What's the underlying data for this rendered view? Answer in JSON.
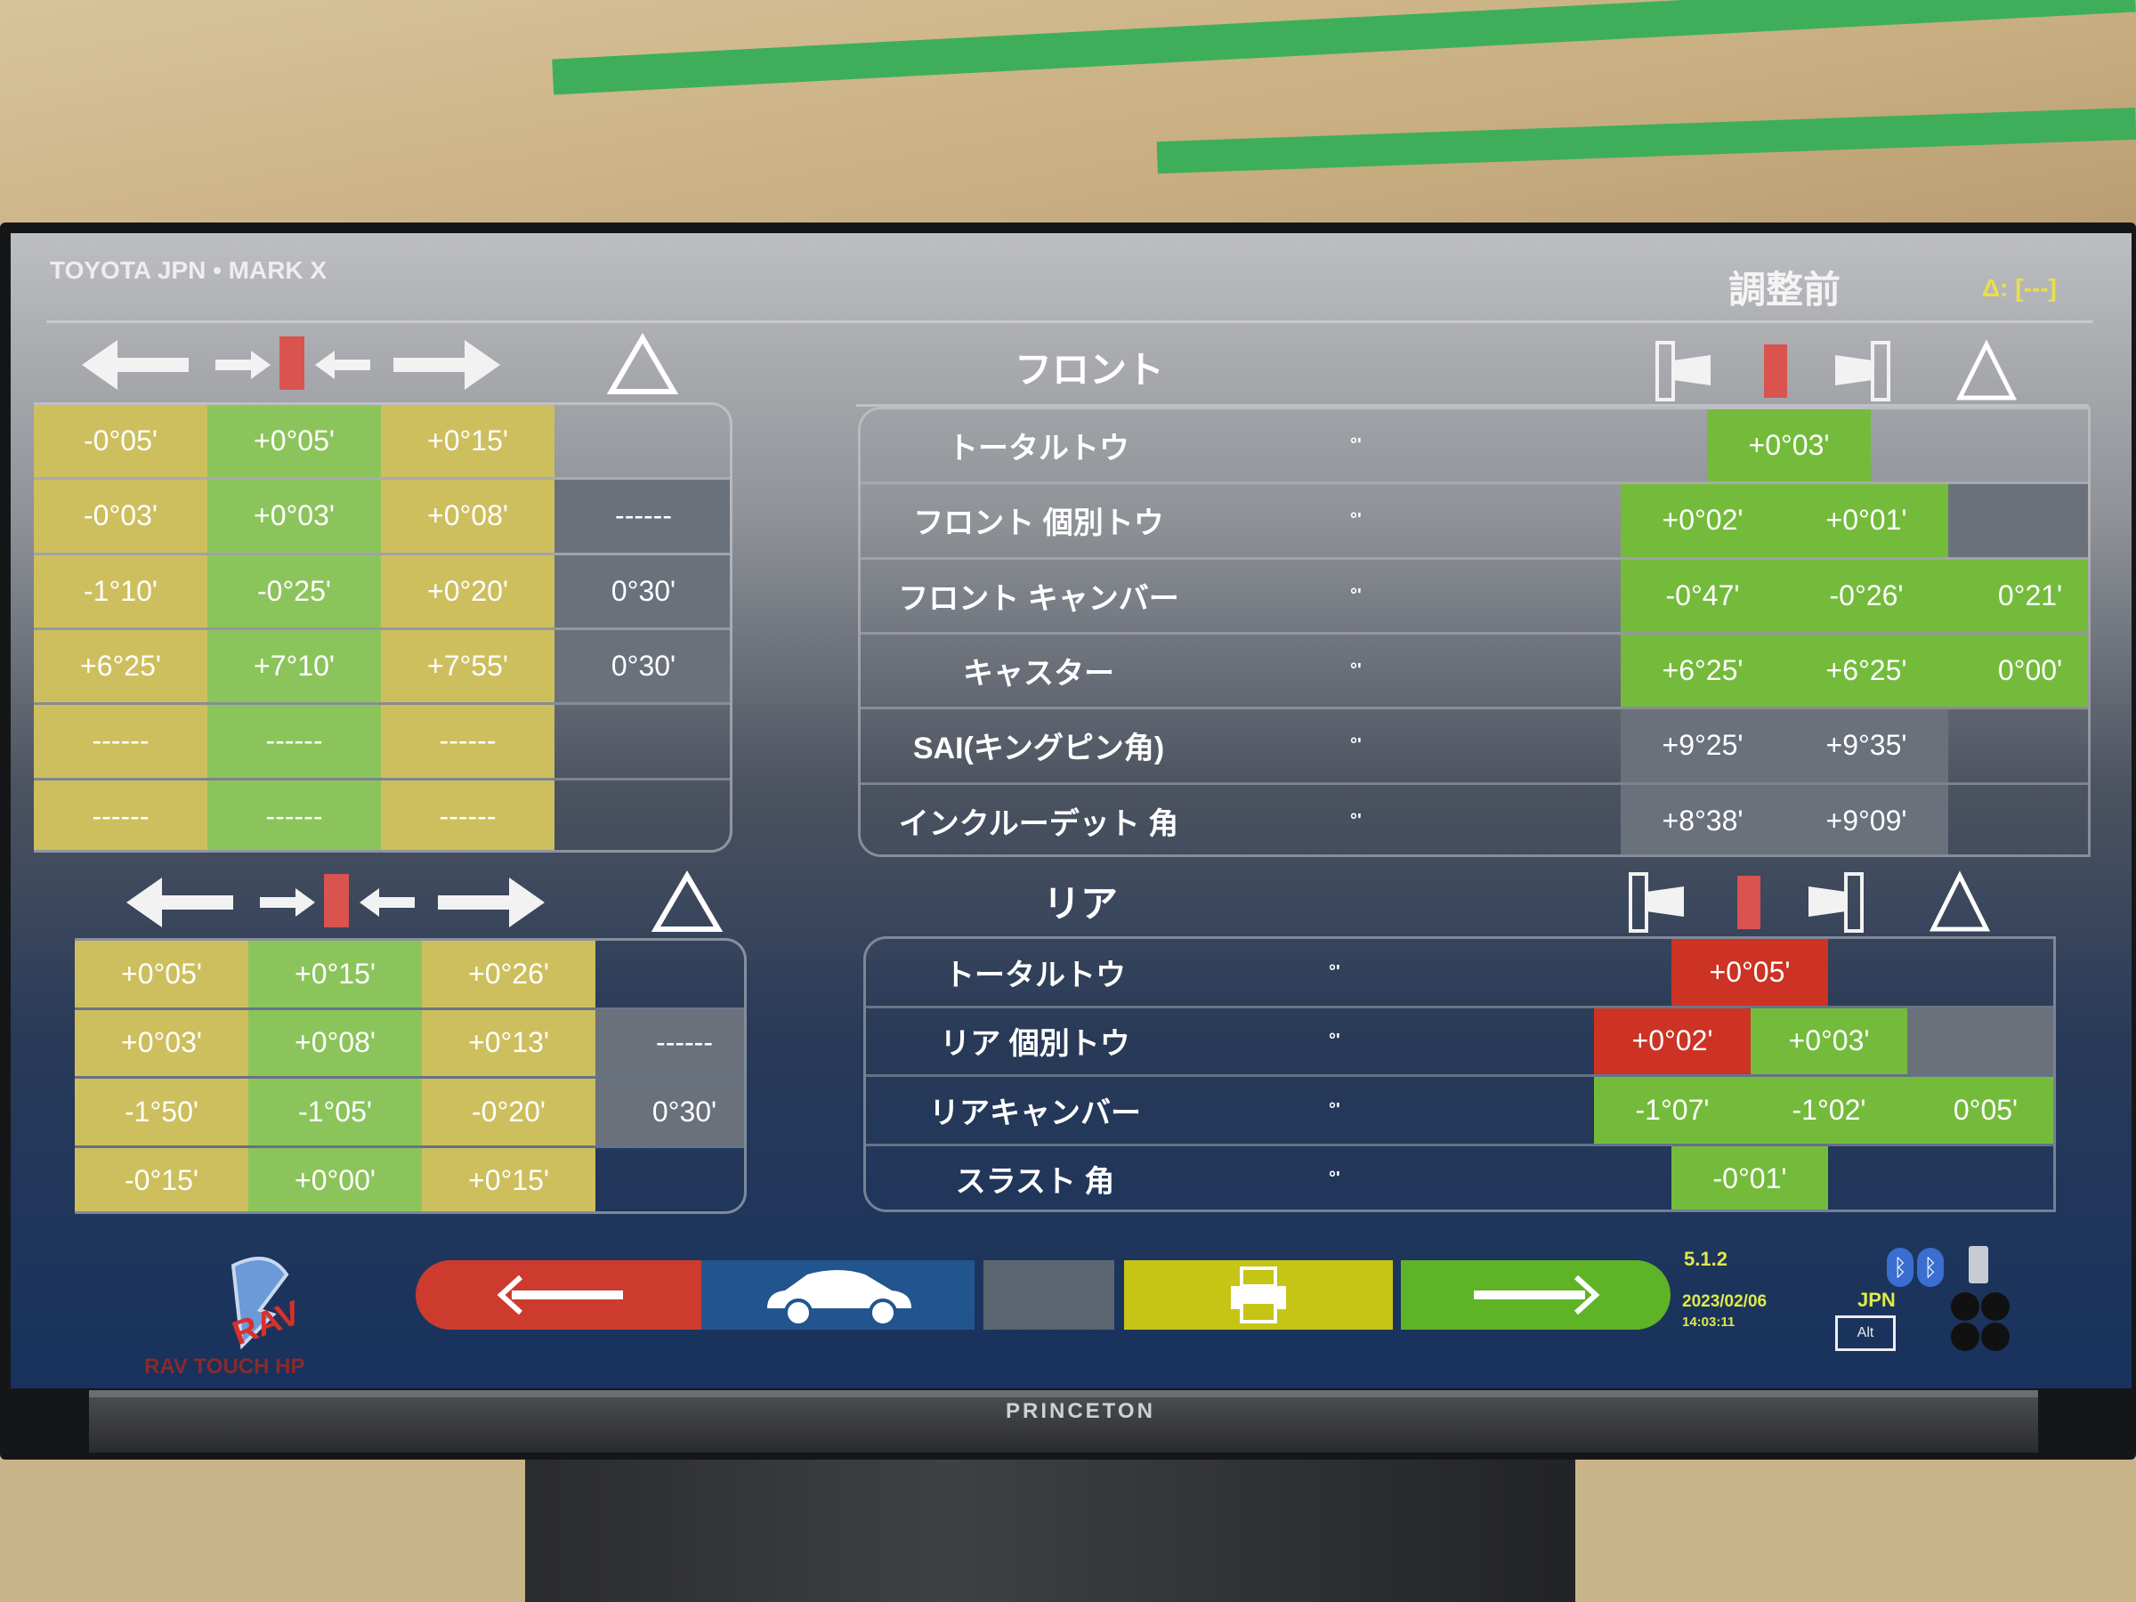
{
  "header": {
    "title": "TOYOTA JPN • MARK X",
    "state": "調整前",
    "delta": "Δ: [---]"
  },
  "colors": {
    "y": "#cdbf5e",
    "g": "#8cc45c",
    "G": "#74bb3c",
    "R": "#cc3324",
    "gray": "#6a717b",
    "none": "transparent"
  },
  "left_front": {
    "rows": [
      [
        {
          "v": "-0°05'",
          "c": "y"
        },
        {
          "v": "+0°05'",
          "c": "g"
        },
        {
          "v": "+0°15'",
          "c": "y"
        },
        {
          "v": "",
          "c": "none"
        }
      ],
      [
        {
          "v": "-0°03'",
          "c": "y"
        },
        {
          "v": "+0°03'",
          "c": "g"
        },
        {
          "v": "+0°08'",
          "c": "y"
        },
        {
          "v": "------",
          "c": "gray"
        }
      ],
      [
        {
          "v": "-1°10'",
          "c": "y"
        },
        {
          "v": "-0°25'",
          "c": "g"
        },
        {
          "v": "+0°20'",
          "c": "y"
        },
        {
          "v": "0°30'",
          "c": "gray"
        }
      ],
      [
        {
          "v": "+6°25'",
          "c": "y"
        },
        {
          "v": "+7°10'",
          "c": "g"
        },
        {
          "v": "+7°55'",
          "c": "y"
        },
        {
          "v": "0°30'",
          "c": "gray"
        }
      ],
      [
        {
          "v": "------",
          "c": "y"
        },
        {
          "v": "------",
          "c": "g"
        },
        {
          "v": "------",
          "c": "y"
        },
        {
          "v": "",
          "c": "none"
        }
      ],
      [
        {
          "v": "------",
          "c": "y"
        },
        {
          "v": "------",
          "c": "g"
        },
        {
          "v": "------",
          "c": "y"
        },
        {
          "v": "",
          "c": "none"
        }
      ]
    ]
  },
  "left_rear": {
    "rows": [
      [
        {
          "v": "+0°05'",
          "c": "y"
        },
        {
          "v": "+0°15'",
          "c": "g"
        },
        {
          "v": "+0°26'",
          "c": "y"
        },
        {
          "v": "",
          "c": "none"
        }
      ],
      [
        {
          "v": "+0°03'",
          "c": "y"
        },
        {
          "v": "+0°08'",
          "c": "g"
        },
        {
          "v": "+0°13'",
          "c": "y"
        },
        {
          "v": "------",
          "c": "gray"
        }
      ],
      [
        {
          "v": "-1°50'",
          "c": "y"
        },
        {
          "v": "-1°05'",
          "c": "g"
        },
        {
          "v": "-0°20'",
          "c": "y"
        },
        {
          "v": "0°30'",
          "c": "gray"
        }
      ],
      [
        {
          "v": "-0°15'",
          "c": "y"
        },
        {
          "v": "+0°00'",
          "c": "g"
        },
        {
          "v": "+0°15'",
          "c": "y"
        },
        {
          "v": "",
          "c": "none"
        }
      ]
    ]
  },
  "front": {
    "title": "フロント",
    "unit": "°'",
    "rows": [
      {
        "label": "トータルトウ",
        "span": "total",
        "cells": [
          {
            "v": "+0°03'",
            "c": "G"
          }
        ]
      },
      {
        "label": "フロント 個別トウ",
        "cells": [
          {
            "v": "+0°02'",
            "c": "G"
          },
          {
            "v": "+0°01'",
            "c": "G"
          },
          {
            "v": "",
            "c": "gray"
          }
        ]
      },
      {
        "label": "フロント キャンバー",
        "cells": [
          {
            "v": "-0°47'",
            "c": "G"
          },
          {
            "v": "-0°26'",
            "c": "G"
          },
          {
            "v": "0°21'",
            "c": "G"
          }
        ]
      },
      {
        "label": "キャスター",
        "cells": [
          {
            "v": "+6°25'",
            "c": "G"
          },
          {
            "v": "+6°25'",
            "c": "G"
          },
          {
            "v": "0°00'",
            "c": "G"
          }
        ]
      },
      {
        "label": "SAI(キングピン角)",
        "cells": [
          {
            "v": "+9°25'",
            "c": "gray"
          },
          {
            "v": "+9°35'",
            "c": "gray"
          },
          {
            "v": "",
            "c": "none"
          }
        ]
      },
      {
        "label": "インクルーデット 角",
        "cells": [
          {
            "v": "+8°38'",
            "c": "gray"
          },
          {
            "v": "+9°09'",
            "c": "gray"
          },
          {
            "v": "",
            "c": "none"
          }
        ]
      }
    ]
  },
  "rear": {
    "title": "リア",
    "unit": "°'",
    "rows": [
      {
        "label": "トータルトウ",
        "span": "total",
        "cells": [
          {
            "v": "+0°05'",
            "c": "R"
          }
        ]
      },
      {
        "label": "リア 個別トウ",
        "cells": [
          {
            "v": "+0°02'",
            "c": "R"
          },
          {
            "v": "+0°03'",
            "c": "G"
          },
          {
            "v": "",
            "c": "gray"
          }
        ]
      },
      {
        "label": "リアキャンバー",
        "cells": [
          {
            "v": "-1°07'",
            "c": "G"
          },
          {
            "v": "-1°02'",
            "c": "G"
          },
          {
            "v": "0°05'",
            "c": "G"
          }
        ]
      },
      {
        "label": "スラスト 角",
        "span": "total",
        "cells": [
          {
            "v": "-0°01'",
            "c": "G"
          }
        ]
      }
    ]
  },
  "footer": {
    "version": "5.1.2",
    "date": "2023/02/06",
    "time": "14:03:11",
    "lang": "JPN",
    "alt_label": "Alt",
    "logo_text": "RAV",
    "brand_text": "RAV TOUCH HP"
  },
  "bezel": {
    "brand": "PRINCETON"
  }
}
